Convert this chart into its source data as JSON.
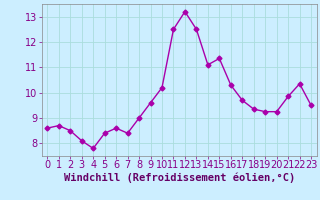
{
  "x": [
    0,
    1,
    2,
    3,
    4,
    5,
    6,
    7,
    8,
    9,
    10,
    11,
    12,
    13,
    14,
    15,
    16,
    17,
    18,
    19,
    20,
    21,
    22,
    23
  ],
  "y": [
    8.6,
    8.7,
    8.5,
    8.1,
    7.8,
    8.4,
    8.6,
    8.4,
    9.0,
    9.6,
    10.2,
    12.5,
    13.2,
    12.5,
    11.1,
    11.35,
    10.3,
    9.7,
    9.35,
    9.25,
    9.25,
    9.85,
    10.35,
    9.5
  ],
  "line_color": "#aa00aa",
  "marker": "D",
  "marker_size": 2.5,
  "line_width": 1.0,
  "xlabel": "Windchill (Refroidissement éolien,°C)",
  "xlabel_fontsize": 7.5,
  "ylim": [
    7.5,
    13.5
  ],
  "xlim": [
    -0.5,
    23.5
  ],
  "yticks": [
    8,
    9,
    10,
    11,
    12,
    13
  ],
  "xticks": [
    0,
    1,
    2,
    3,
    4,
    5,
    6,
    7,
    8,
    9,
    10,
    11,
    12,
    13,
    14,
    15,
    16,
    17,
    18,
    19,
    20,
    21,
    22,
    23
  ],
  "grid_color": "#aadddd",
  "bg_color": "#cceeff",
  "tick_color": "#880088",
  "label_color": "#660066",
  "tick_fontsize": 7,
  "spine_color": "#888888"
}
